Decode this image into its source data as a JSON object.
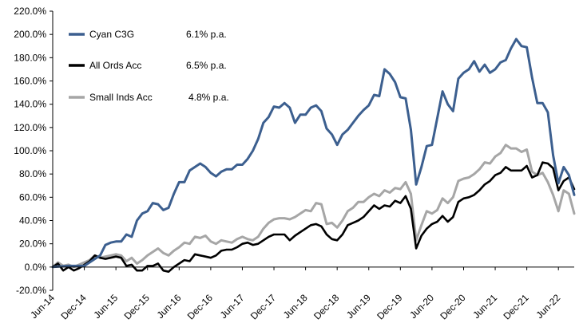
{
  "chart_data": {
    "type": "line",
    "title": "",
    "xlabel": "",
    "ylabel": "",
    "ylim": [
      -20,
      220
    ],
    "y_ticks": [
      "-20.0%",
      "0.0%",
      "20.0%",
      "40.0%",
      "60.0%",
      "80.0%",
      "100.0%",
      "120.0%",
      "140.0%",
      "160.0%",
      "180.0%",
      "200.0%",
      "220.0%"
    ],
    "y_tick_values": [
      -20,
      0,
      20,
      40,
      60,
      80,
      100,
      120,
      140,
      160,
      180,
      200,
      220
    ],
    "x_ticks": [
      "Jun-14",
      "Dec-14",
      "Jun-15",
      "Dec-15",
      "Jun-16",
      "Dec-16",
      "Jun-17",
      "Dec-17",
      "Jun-18",
      "Dec-18",
      "Jun-19",
      "Dec-19",
      "Jun-20",
      "Dec-20",
      "Jun-21",
      "Dec-21",
      "Jun-22"
    ],
    "x_start": "Jun-14",
    "x_end": "Sep-22",
    "grid": false,
    "legend_placement": "top-left",
    "series": [
      {
        "name": "Cyan C3G",
        "rate": "6.1% p.a.",
        "color": "#3c5f8f",
        "points": [
          [
            "Jun-14",
            0
          ],
          [
            "Sep-14",
            1
          ],
          [
            "Dec-14",
            1
          ],
          [
            "Mar-15",
            10
          ],
          [
            "Apr-15",
            19
          ],
          [
            "May-15",
            21
          ],
          [
            "Jun-15",
            22
          ],
          [
            "Jul-15",
            22
          ],
          [
            "Aug-15",
            28
          ],
          [
            "Sep-15",
            26
          ],
          [
            "Oct-15",
            40
          ],
          [
            "Nov-15",
            46
          ],
          [
            "Dec-15",
            48
          ],
          [
            "Jan-16",
            55
          ],
          [
            "Feb-16",
            54
          ],
          [
            "Mar-16",
            49
          ],
          [
            "Apr-16",
            51
          ],
          [
            "May-16",
            63
          ],
          [
            "Jun-16",
            73
          ],
          [
            "Jul-16",
            73
          ],
          [
            "Aug-16",
            83
          ],
          [
            "Sep-16",
            86
          ],
          [
            "Oct-16",
            89
          ],
          [
            "Nov-16",
            86
          ],
          [
            "Dec-16",
            81
          ],
          [
            "Jan-17",
            78
          ],
          [
            "Feb-17",
            82
          ],
          [
            "Mar-17",
            84
          ],
          [
            "Apr-17",
            84
          ],
          [
            "May-17",
            88
          ],
          [
            "Jun-17",
            88
          ],
          [
            "Jul-17",
            93
          ],
          [
            "Aug-17",
            100
          ],
          [
            "Sep-17",
            110
          ],
          [
            "Oct-17",
            124
          ],
          [
            "Nov-17",
            129
          ],
          [
            "Dec-17",
            138
          ],
          [
            "Jan-18",
            137
          ],
          [
            "Feb-18",
            141
          ],
          [
            "Mar-18",
            137
          ],
          [
            "Apr-18",
            124
          ],
          [
            "May-18",
            131
          ],
          [
            "Jun-18",
            131
          ],
          [
            "Jul-18",
            137
          ],
          [
            "Aug-18",
            139
          ],
          [
            "Sep-18",
            134
          ],
          [
            "Oct-18",
            119
          ],
          [
            "Nov-18",
            114
          ],
          [
            "Dec-18",
            105
          ],
          [
            "Jan-19",
            114
          ],
          [
            "Feb-19",
            118
          ],
          [
            "Mar-19",
            124
          ],
          [
            "Apr-19",
            130
          ],
          [
            "May-19",
            135
          ],
          [
            "Jun-19",
            139
          ],
          [
            "Jul-19",
            148
          ],
          [
            "Aug-19",
            147
          ],
          [
            "Sep-19",
            170
          ],
          [
            "Oct-19",
            166
          ],
          [
            "Nov-19",
            159
          ],
          [
            "Dec-19",
            146
          ],
          [
            "Jan-20",
            145
          ],
          [
            "Feb-20",
            118
          ],
          [
            "Mar-20",
            71
          ],
          [
            "Apr-20",
            86
          ],
          [
            "May-20",
            104
          ],
          [
            "Jun-20",
            105
          ],
          [
            "Jul-20",
            128
          ],
          [
            "Aug-20",
            151
          ],
          [
            "Sep-20",
            140
          ],
          [
            "Oct-20",
            134
          ],
          [
            "Nov-20",
            162
          ],
          [
            "Dec-20",
            167
          ],
          [
            "Jan-21",
            170
          ],
          [
            "Feb-21",
            177
          ],
          [
            "Mar-21",
            168
          ],
          [
            "Apr-21",
            174
          ],
          [
            "May-21",
            167
          ],
          [
            "Jun-21",
            170
          ],
          [
            "Jul-21",
            176
          ],
          [
            "Aug-21",
            178
          ],
          [
            "Sep-21",
            188
          ],
          [
            "Oct-21",
            196
          ],
          [
            "Nov-21",
            190
          ],
          [
            "Dec-21",
            189
          ],
          [
            "Jan-22",
            163
          ],
          [
            "Feb-22",
            141
          ],
          [
            "Mar-22",
            141
          ],
          [
            "Apr-22",
            133
          ],
          [
            "May-22",
            96
          ],
          [
            "Jun-22",
            72
          ],
          [
            "Jul-22",
            86
          ],
          [
            "Aug-22",
            79
          ],
          [
            "Sep-22",
            62
          ]
        ]
      },
      {
        "name": "All Ords Acc",
        "rate": "6.5% p.a.",
        "color": "#000000",
        "points": [
          [
            "Jun-14",
            0
          ],
          [
            "Jul-14",
            3
          ],
          [
            "Aug-14",
            -3
          ],
          [
            "Sep-14",
            0
          ],
          [
            "Oct-14",
            -3
          ],
          [
            "Nov-14",
            -1
          ],
          [
            "Dec-14",
            2
          ],
          [
            "Jan-15",
            5
          ],
          [
            "Feb-15",
            10
          ],
          [
            "Mar-15",
            8
          ],
          [
            "Apr-15",
            7
          ],
          [
            "May-15",
            8
          ],
          [
            "Jun-15",
            9
          ],
          [
            "Jul-15",
            8
          ],
          [
            "Aug-15",
            1
          ],
          [
            "Sep-15",
            2
          ],
          [
            "Oct-15",
            -3
          ],
          [
            "Nov-15",
            -3
          ],
          [
            "Dec-15",
            1
          ],
          [
            "Jan-16",
            1
          ],
          [
            "Feb-16",
            3
          ],
          [
            "Mar-16",
            -3
          ],
          [
            "Apr-16",
            -4
          ],
          [
            "May-16",
            0
          ],
          [
            "Jun-16",
            3
          ],
          [
            "Jul-16",
            6
          ],
          [
            "Aug-16",
            5
          ],
          [
            "Sep-16",
            11
          ],
          [
            "Oct-16",
            10
          ],
          [
            "Nov-16",
            9
          ],
          [
            "Dec-16",
            8
          ],
          [
            "Jan-17",
            10
          ],
          [
            "Feb-17",
            14
          ],
          [
            "Mar-17",
            15
          ],
          [
            "Apr-17",
            15
          ],
          [
            "May-17",
            17
          ],
          [
            "Jun-17",
            20
          ],
          [
            "Jul-17",
            21
          ],
          [
            "Aug-17",
            19
          ],
          [
            "Sep-17",
            20
          ],
          [
            "Oct-17",
            23
          ],
          [
            "Nov-17",
            26
          ],
          [
            "Dec-17",
            28
          ],
          [
            "Jan-18",
            28
          ],
          [
            "Feb-18",
            28
          ],
          [
            "Mar-18",
            23
          ],
          [
            "Apr-18",
            27
          ],
          [
            "May-18",
            30
          ],
          [
            "Jun-18",
            33
          ],
          [
            "Jul-18",
            36
          ],
          [
            "Aug-18",
            37
          ],
          [
            "Sep-18",
            35
          ],
          [
            "Oct-18",
            28
          ],
          [
            "Nov-18",
            24
          ],
          [
            "Dec-18",
            23
          ],
          [
            "Jan-19",
            28
          ],
          [
            "Feb-19",
            36
          ],
          [
            "Mar-19",
            38
          ],
          [
            "Apr-19",
            40
          ],
          [
            "May-19",
            43
          ],
          [
            "Jun-19",
            48
          ],
          [
            "Jul-19",
            53
          ],
          [
            "Aug-19",
            50
          ],
          [
            "Sep-19",
            53
          ],
          [
            "Oct-19",
            52
          ],
          [
            "Nov-19",
            57
          ],
          [
            "Dec-19",
            55
          ],
          [
            "Jan-20",
            61
          ],
          [
            "Feb-20",
            50
          ],
          [
            "Mar-20",
            16
          ],
          [
            "Apr-20",
            27
          ],
          [
            "May-20",
            33
          ],
          [
            "Jun-20",
            37
          ],
          [
            "Jul-20",
            39
          ],
          [
            "Aug-20",
            44
          ],
          [
            "Sep-20",
            39
          ],
          [
            "Oct-20",
            43
          ],
          [
            "Nov-20",
            56
          ],
          [
            "Dec-20",
            59
          ],
          [
            "Jan-21",
            60
          ],
          [
            "Feb-21",
            62
          ],
          [
            "Mar-21",
            66
          ],
          [
            "Apr-21",
            71
          ],
          [
            "May-21",
            74
          ],
          [
            "Jun-21",
            79
          ],
          [
            "Jul-21",
            81
          ],
          [
            "Aug-21",
            86
          ],
          [
            "Sep-21",
            83
          ],
          [
            "Oct-21",
            83
          ],
          [
            "Nov-21",
            83
          ],
          [
            "Dec-21",
            87
          ],
          [
            "Jan-22",
            77
          ],
          [
            "Feb-22",
            79
          ],
          [
            "Mar-22",
            90
          ],
          [
            "Apr-22",
            89
          ],
          [
            "May-22",
            85
          ],
          [
            "Jun-22",
            66
          ],
          [
            "Jul-22",
            74
          ],
          [
            "Aug-22",
            77
          ],
          [
            "Sep-22",
            67
          ]
        ]
      },
      {
        "name": "Small Inds Acc",
        "rate": "4.8% p.a.",
        "color": "#a6a6a6",
        "points": [
          [
            "Jun-14",
            0
          ],
          [
            "Jul-14",
            4
          ],
          [
            "Aug-14",
            1
          ],
          [
            "Sep-14",
            2
          ],
          [
            "Oct-14",
            0
          ],
          [
            "Nov-14",
            2
          ],
          [
            "Dec-14",
            4
          ],
          [
            "Jan-15",
            6
          ],
          [
            "Feb-15",
            10
          ],
          [
            "Mar-15",
            8
          ],
          [
            "Apr-15",
            9
          ],
          [
            "May-15",
            10
          ],
          [
            "Jun-15",
            11
          ],
          [
            "Jul-15",
            10
          ],
          [
            "Aug-15",
            5
          ],
          [
            "Sep-15",
            8
          ],
          [
            "Oct-15",
            3
          ],
          [
            "Nov-15",
            6
          ],
          [
            "Dec-15",
            10
          ],
          [
            "Jan-16",
            13
          ],
          [
            "Feb-16",
            16
          ],
          [
            "Mar-16",
            12
          ],
          [
            "Apr-16",
            10
          ],
          [
            "May-16",
            14
          ],
          [
            "Jun-16",
            17
          ],
          [
            "Jul-16",
            21
          ],
          [
            "Aug-16",
            20
          ],
          [
            "Sep-16",
            26
          ],
          [
            "Oct-16",
            25
          ],
          [
            "Nov-16",
            27
          ],
          [
            "Dec-16",
            22
          ],
          [
            "Jan-17",
            20
          ],
          [
            "Feb-17",
            23
          ],
          [
            "Mar-17",
            22
          ],
          [
            "Apr-17",
            21
          ],
          [
            "May-17",
            24
          ],
          [
            "Jun-17",
            26
          ],
          [
            "Jul-17",
            24
          ],
          [
            "Aug-17",
            23
          ],
          [
            "Sep-17",
            26
          ],
          [
            "Oct-17",
            33
          ],
          [
            "Nov-17",
            38
          ],
          [
            "Dec-17",
            41
          ],
          [
            "Jan-18",
            42
          ],
          [
            "Feb-18",
            42
          ],
          [
            "Mar-18",
            41
          ],
          [
            "Apr-18",
            43
          ],
          [
            "May-18",
            46
          ],
          [
            "Jun-18",
            49
          ],
          [
            "Jul-18",
            48
          ],
          [
            "Aug-18",
            55
          ],
          [
            "Sep-18",
            54
          ],
          [
            "Oct-18",
            37
          ],
          [
            "Nov-18",
            38
          ],
          [
            "Dec-18",
            34
          ],
          [
            "Jan-19",
            40
          ],
          [
            "Feb-19",
            48
          ],
          [
            "Mar-19",
            51
          ],
          [
            "Apr-19",
            56
          ],
          [
            "May-19",
            56
          ],
          [
            "Jun-19",
            60
          ],
          [
            "Jul-19",
            63
          ],
          [
            "Aug-19",
            61
          ],
          [
            "Sep-19",
            66
          ],
          [
            "Oct-19",
            64
          ],
          [
            "Nov-19",
            68
          ],
          [
            "Dec-19",
            67
          ],
          [
            "Jan-20",
            73
          ],
          [
            "Feb-20",
            63
          ],
          [
            "Mar-20",
            23
          ],
          [
            "Apr-20",
            36
          ],
          [
            "May-20",
            48
          ],
          [
            "Jun-20",
            46
          ],
          [
            "Jul-20",
            49
          ],
          [
            "Aug-20",
            59
          ],
          [
            "Sep-20",
            55
          ],
          [
            "Oct-20",
            60
          ],
          [
            "Nov-20",
            74
          ],
          [
            "Dec-20",
            76
          ],
          [
            "Jan-21",
            77
          ],
          [
            "Feb-21",
            80
          ],
          [
            "Mar-21",
            84
          ],
          [
            "Apr-21",
            90
          ],
          [
            "May-21",
            89
          ],
          [
            "Jun-21",
            95
          ],
          [
            "Jul-21",
            98
          ],
          [
            "Aug-21",
            105
          ],
          [
            "Sep-21",
            102
          ],
          [
            "Oct-21",
            102
          ],
          [
            "Nov-21",
            99
          ],
          [
            "Dec-21",
            101
          ],
          [
            "Jan-22",
            82
          ],
          [
            "Feb-22",
            79
          ],
          [
            "Mar-22",
            81
          ],
          [
            "Apr-22",
            73
          ],
          [
            "May-22",
            62
          ],
          [
            "Jun-22",
            48
          ],
          [
            "Jul-22",
            66
          ],
          [
            "Aug-22",
            63
          ],
          [
            "Sep-22",
            46
          ]
        ]
      }
    ]
  }
}
